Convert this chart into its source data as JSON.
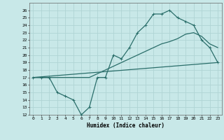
{
  "xlabel": "Humidex (Indice chaleur)",
  "background_color": "#c8e8e8",
  "grid_color": "#b0d4d4",
  "line_color": "#2a6e6a",
  "xlim": [
    -0.5,
    23.5
  ],
  "ylim": [
    12,
    27
  ],
  "xticks": [
    0,
    1,
    2,
    3,
    4,
    5,
    6,
    7,
    8,
    9,
    10,
    11,
    12,
    13,
    14,
    15,
    16,
    17,
    18,
    19,
    20,
    21,
    22,
    23
  ],
  "yticks": [
    12,
    13,
    14,
    15,
    16,
    17,
    18,
    19,
    20,
    21,
    22,
    23,
    24,
    25,
    26
  ],
  "line1_x": [
    0,
    1,
    2,
    3,
    4,
    5,
    6,
    7,
    8,
    9,
    10,
    11,
    12,
    13,
    14,
    15,
    16,
    17,
    18,
    19,
    20,
    21,
    22,
    23
  ],
  "line1_y": [
    17,
    17,
    17,
    15,
    14.5,
    14,
    12,
    13,
    17,
    17,
    20,
    19.5,
    21,
    23,
    24,
    25.5,
    25.5,
    26,
    25,
    24.5,
    24,
    22,
    21,
    19
  ],
  "line2_x": [
    0,
    1,
    2,
    3,
    4,
    5,
    6,
    7,
    8,
    9,
    10,
    11,
    12,
    13,
    14,
    15,
    16,
    17,
    18,
    19,
    20,
    21,
    22,
    23
  ],
  "line2_y": [
    17,
    17,
    17,
    17,
    17,
    17,
    17,
    17,
    17.5,
    18,
    18.5,
    19,
    19.5,
    20,
    20.5,
    21,
    21.5,
    21.8,
    22.2,
    22.8,
    23,
    22.5,
    21.5,
    21
  ],
  "line3_x": [
    0,
    23
  ],
  "line3_y": [
    17,
    19
  ]
}
